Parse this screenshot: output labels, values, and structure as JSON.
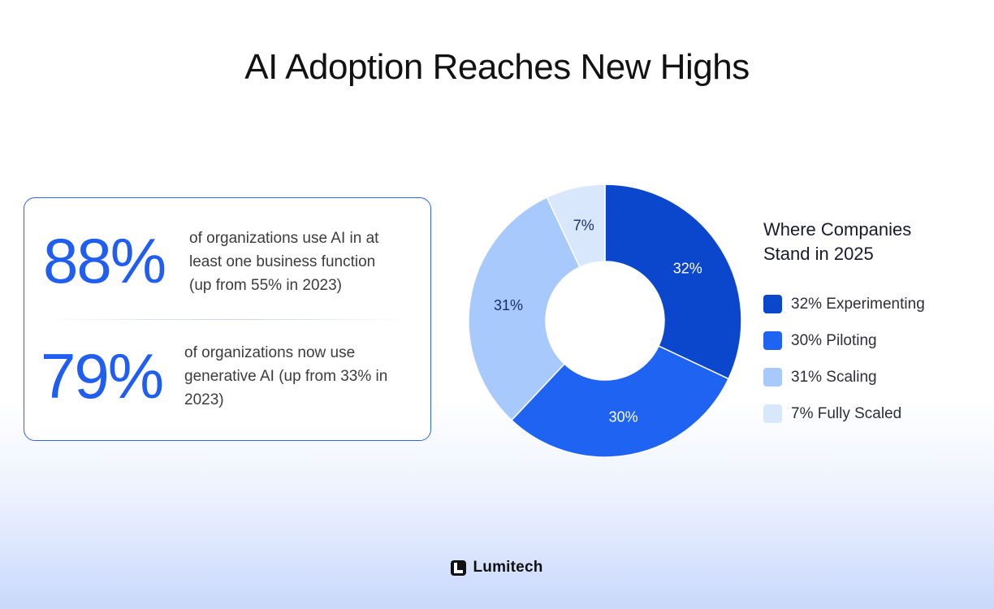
{
  "title": "AI Adoption Reaches New Highs",
  "stats": [
    {
      "number": "88%",
      "lines": [
        "of organizations use AI in at",
        "least one business function",
        "(up from 55% in 2023)"
      ]
    },
    {
      "number": "79%",
      "lines": [
        "of organizations now use",
        "generative AI (up from 33% in",
        "2023)"
      ]
    }
  ],
  "chart_data": {
    "type": "pie",
    "style": "donut",
    "title": "Where Companies Stand in 2025",
    "legend_position": "right",
    "series": [
      {
        "name": "Experimenting",
        "value": 32,
        "data_label": "32%",
        "legend_label": "32% Experimenting",
        "color": "#0a47cc"
      },
      {
        "name": "Piloting",
        "value": 30,
        "data_label": "30%",
        "legend_label": "30% Piloting",
        "color": "#1e63f2"
      },
      {
        "name": "Scaling",
        "value": 31,
        "data_label": "31%",
        "legend_label": "31% Scaling",
        "color": "#a7c9fb"
      },
      {
        "name": "Fully Scaled",
        "value": 7,
        "data_label": "7%",
        "legend_label": "7% Fully Scaled",
        "color": "#d9e7fd"
      }
    ]
  },
  "legend": {
    "title_lines": [
      "Where Companies",
      "Stand in 2025"
    ]
  },
  "brand": {
    "name": "Lumitech",
    "accent": "#1f5ef0"
  }
}
